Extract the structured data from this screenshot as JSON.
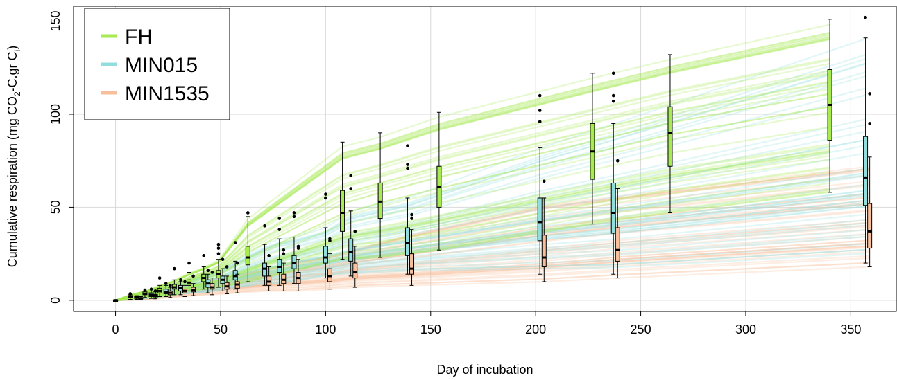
{
  "colors": {
    "FH": "#a7ea52",
    "MIN015": "#92dede",
    "MIN1535": "#f7bf9b",
    "grid": "#d9d9d9",
    "frame": "#000000"
  },
  "chart_data": {
    "type": "box-and-line",
    "xlabel": "Day of incubation",
    "ylabel_parts": [
      "Cumulative respiration (mg CO",
      "2",
      "-C.gr C",
      "i",
      ")"
    ],
    "xlim": [
      -20,
      372
    ],
    "ylim": [
      -6,
      158
    ],
    "x_ticks": [
      0,
      50,
      100,
      150,
      200,
      250,
      300,
      350
    ],
    "y_ticks": [
      0,
      50,
      100,
      150
    ],
    "x_tick_labels": [
      "0",
      "50",
      "100",
      "150",
      "200",
      "250",
      "300",
      "350"
    ],
    "y_tick_labels": [
      "0",
      "50",
      "100",
      "150"
    ],
    "grid": true,
    "legend_position": "top-left",
    "legend": [
      {
        "name": "FH",
        "color_key": "FH"
      },
      {
        "name": "MIN015",
        "color_key": "MIN015"
      },
      {
        "name": "MIN1535",
        "color_key": "MIN1535"
      }
    ],
    "series": [
      {
        "name": "FH",
        "color_key": "FH",
        "boxes": [
          {
            "x": 0,
            "min": 0,
            "q1": 0,
            "median": 0,
            "q3": 0,
            "max": 0,
            "outliers": []
          },
          {
            "x": 7,
            "min": 0.5,
            "q1": 1.5,
            "median": 2,
            "q3": 2.5,
            "max": 3,
            "outliers": [
              3.5
            ]
          },
          {
            "x": 14,
            "min": 1.5,
            "q1": 3,
            "median": 3.5,
            "q3": 4.5,
            "max": 5,
            "outliers": [
              5.5
            ]
          },
          {
            "x": 21,
            "min": 2,
            "q1": 4,
            "median": 5,
            "q3": 6.5,
            "max": 8,
            "outliers": [
              12
            ]
          },
          {
            "x": 28,
            "min": 3,
            "q1": 6,
            "median": 7,
            "q3": 8.5,
            "max": 11,
            "outliers": [
              17
            ]
          },
          {
            "x": 35,
            "min": 5,
            "q1": 8,
            "median": 9.5,
            "q3": 11,
            "max": 15,
            "outliers": [
              20
            ]
          },
          {
            "x": 42,
            "min": 6,
            "q1": 10,
            "median": 12,
            "q3": 14,
            "max": 18,
            "outliers": [
              24
            ]
          },
          {
            "x": 49,
            "min": 7,
            "q1": 12,
            "median": 14,
            "q3": 16,
            "max": 22,
            "outliers": [
              25,
              28,
              30
            ]
          },
          {
            "x": 63,
            "min": 10,
            "q1": 19,
            "median": 23,
            "q3": 29,
            "max": 45,
            "outliers": [
              47
            ]
          },
          {
            "x": 108,
            "min": 22,
            "q1": 37,
            "median": 47,
            "q3": 59,
            "max": 85,
            "outliers": []
          },
          {
            "x": 126,
            "min": 23,
            "q1": 44,
            "median": 53,
            "q3": 63,
            "max": 90,
            "outliers": []
          },
          {
            "x": 154,
            "min": 27,
            "q1": 50,
            "median": 61,
            "q3": 72,
            "max": 101,
            "outliers": []
          },
          {
            "x": 227,
            "min": 41,
            "q1": 65,
            "median": 80,
            "q3": 95,
            "max": 122,
            "outliers": []
          },
          {
            "x": 264,
            "min": 47,
            "q1": 72,
            "median": 90,
            "q3": 104,
            "max": 132,
            "outliers": []
          },
          {
            "x": 340,
            "min": 58,
            "q1": 86,
            "median": 105,
            "q3": 124,
            "max": 151,
            "outliers": []
          }
        ]
      },
      {
        "name": "MIN015",
        "color_key": "MIN015",
        "boxes": [
          {
            "x": 0,
            "min": 0,
            "q1": 0,
            "median": 0,
            "q3": 0,
            "max": 0,
            "outliers": []
          },
          {
            "x": 10,
            "min": 0.5,
            "q1": 1,
            "median": 1.5,
            "q3": 2,
            "max": 2.5,
            "outliers": []
          },
          {
            "x": 17,
            "min": 1,
            "q1": 2,
            "median": 3,
            "q3": 4,
            "max": 5,
            "outliers": [
              6
            ]
          },
          {
            "x": 24,
            "min": 2,
            "q1": 3.5,
            "median": 4.5,
            "q3": 6,
            "max": 8,
            "outliers": [
              9
            ]
          },
          {
            "x": 31,
            "min": 3,
            "q1": 5,
            "median": 6.5,
            "q3": 8,
            "max": 10,
            "outliers": [
              11
            ]
          },
          {
            "x": 44,
            "min": 4,
            "q1": 7,
            "median": 9,
            "q3": 11,
            "max": 14,
            "outliers": [
              16
            ]
          },
          {
            "x": 51,
            "min": 5,
            "q1": 9,
            "median": 11,
            "q3": 13,
            "max": 17,
            "outliers": [
              22
            ]
          },
          {
            "x": 57,
            "min": 6,
            "q1": 11,
            "median": 13,
            "q3": 16,
            "max": 21,
            "outliers": [
              31
            ]
          },
          {
            "x": 71,
            "min": 8,
            "q1": 13,
            "median": 17,
            "q3": 20,
            "max": 30,
            "outliers": [
              40
            ]
          },
          {
            "x": 78,
            "min": 8,
            "q1": 15,
            "median": 18,
            "q3": 22,
            "max": 33,
            "outliers": [
              38,
              44
            ]
          },
          {
            "x": 85,
            "min": 9,
            "q1": 17,
            "median": 20,
            "q3": 24,
            "max": 34,
            "outliers": [
              45,
              47
            ]
          },
          {
            "x": 100,
            "min": 12,
            "q1": 20,
            "median": 23,
            "q3": 29,
            "max": 39,
            "outliers": [
              55,
              57
            ]
          },
          {
            "x": 112,
            "min": 13,
            "q1": 21,
            "median": 26,
            "q3": 33,
            "max": 48,
            "outliers": [
              60,
              67
            ]
          },
          {
            "x": 139,
            "min": 14,
            "q1": 24,
            "median": 31,
            "q3": 39,
            "max": 55,
            "outliers": [
              71,
              73,
              83
            ]
          },
          {
            "x": 202,
            "min": 14,
            "q1": 32,
            "median": 42,
            "q3": 55,
            "max": 82,
            "outliers": [
              96,
              102,
              110
            ]
          },
          {
            "x": 237,
            "min": 14,
            "q1": 36,
            "median": 47,
            "q3": 63,
            "max": 95,
            "outliers": [
              107,
              110,
              122
            ]
          },
          {
            "x": 357,
            "min": 20,
            "q1": 51,
            "median": 66,
            "q3": 88,
            "max": 141,
            "outliers": [
              152
            ]
          }
        ]
      },
      {
        "name": "MIN1535",
        "color_key": "MIN1535",
        "boxes": [
          {
            "x": 0,
            "min": 0,
            "q1": 0,
            "median": 0,
            "q3": 0,
            "max": 0,
            "outliers": []
          },
          {
            "x": 12,
            "min": 0.3,
            "q1": 0.8,
            "median": 1,
            "q3": 1.5,
            "max": 2,
            "outliers": []
          },
          {
            "x": 19,
            "min": 0.8,
            "q1": 1.8,
            "median": 2.5,
            "q3": 3.2,
            "max": 4.5,
            "outliers": [
              5
            ]
          },
          {
            "x": 26,
            "min": 1.5,
            "q1": 3,
            "median": 4,
            "q3": 5,
            "max": 7,
            "outliers": [
              8
            ]
          },
          {
            "x": 33,
            "min": 2,
            "q1": 4,
            "median": 5,
            "q3": 6,
            "max": 8,
            "outliers": [
              10
            ]
          },
          {
            "x": 37,
            "min": 2.5,
            "q1": 4.5,
            "median": 5.5,
            "q3": 7,
            "max": 9,
            "outliers": [
              13
            ]
          },
          {
            "x": 46,
            "min": 3,
            "q1": 6,
            "median": 7,
            "q3": 9,
            "max": 12,
            "outliers": [
              15
            ]
          },
          {
            "x": 53,
            "min": 3.5,
            "q1": 6,
            "median": 7.5,
            "q3": 9.5,
            "max": 13,
            "outliers": [
              18
            ]
          },
          {
            "x": 58,
            "min": 4,
            "q1": 6.5,
            "median": 8.5,
            "q3": 10,
            "max": 14,
            "outliers": [
              20
            ]
          },
          {
            "x": 73,
            "min": 5,
            "q1": 8,
            "median": 10,
            "q3": 13,
            "max": 18,
            "outliers": [
              24
            ]
          },
          {
            "x": 80,
            "min": 5,
            "q1": 9,
            "median": 11,
            "q3": 14,
            "max": 20,
            "outliers": [
              25,
              27
            ]
          },
          {
            "x": 87,
            "min": 5,
            "q1": 9,
            "median": 12,
            "q3": 15,
            "max": 22,
            "outliers": [
              28,
              29
            ]
          },
          {
            "x": 102,
            "min": 6,
            "q1": 10,
            "median": 13,
            "q3": 17,
            "max": 25,
            "outliers": [
              32,
              33
            ]
          },
          {
            "x": 114,
            "min": 7,
            "q1": 12,
            "median": 15,
            "q3": 20,
            "max": 29,
            "outliers": [
              37
            ]
          },
          {
            "x": 141,
            "min": 8,
            "q1": 14,
            "median": 17,
            "q3": 25,
            "max": 38,
            "outliers": [
              44,
              46
            ]
          },
          {
            "x": 204,
            "min": 10,
            "q1": 18,
            "median": 23,
            "q3": 35,
            "max": 55,
            "outliers": [
              64
            ]
          },
          {
            "x": 239,
            "min": 12,
            "q1": 21,
            "median": 27,
            "q3": 39,
            "max": 60,
            "outliers": [
              75
            ]
          },
          {
            "x": 359,
            "min": 18,
            "q1": 28,
            "median": 37,
            "q3": 52,
            "max": 77,
            "outliers": [
              95,
              111
            ]
          }
        ]
      }
    ]
  }
}
